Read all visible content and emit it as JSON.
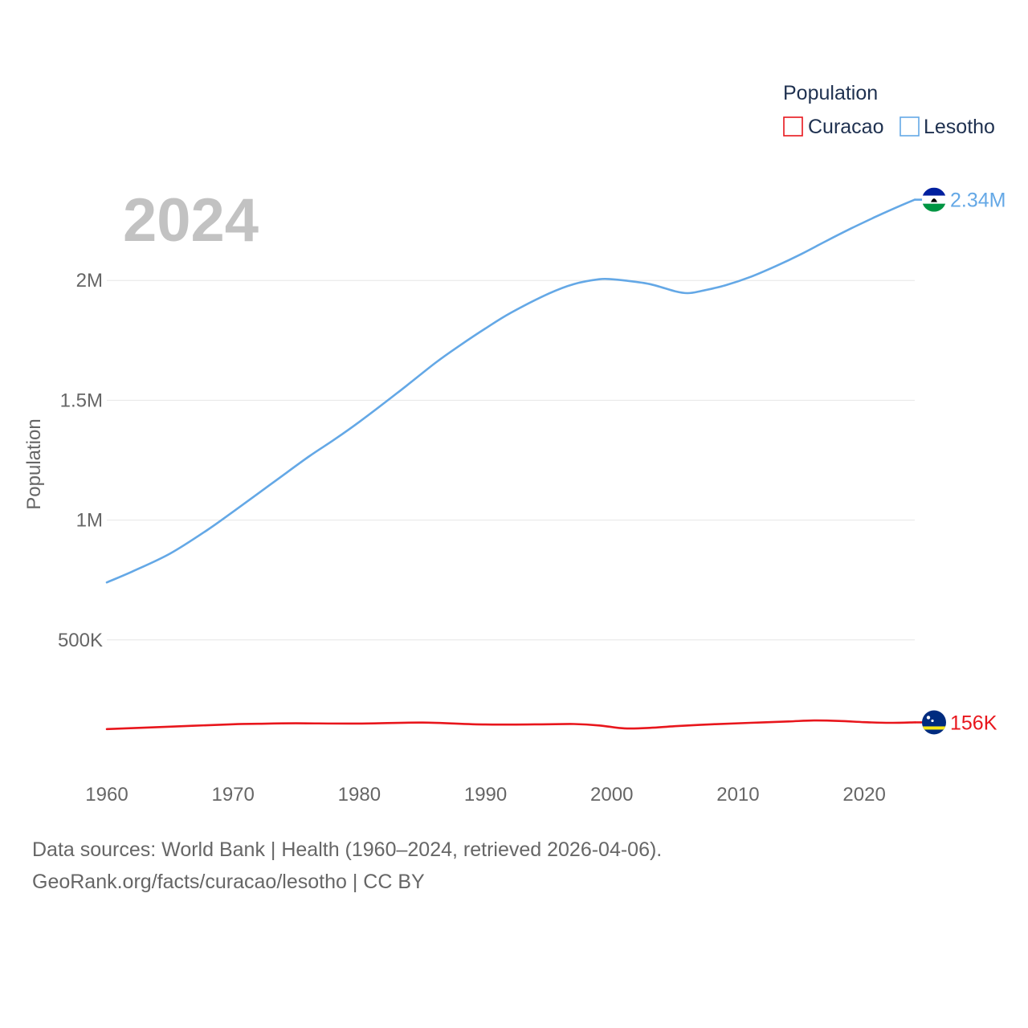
{
  "chart_data": {
    "type": "line",
    "title": "",
    "year_label": "2024",
    "ylabel": "Population",
    "xlabel": "",
    "ylim": [
      0,
      2500000
    ],
    "xlim": [
      1960,
      2024
    ],
    "y_ticks": [
      {
        "value": 500000,
        "label": "500K"
      },
      {
        "value": 1000000,
        "label": "1M"
      },
      {
        "value": 1500000,
        "label": "1.5M"
      },
      {
        "value": 2000000,
        "label": "2M"
      }
    ],
    "x_ticks": [
      {
        "value": 1960,
        "label": "1960"
      },
      {
        "value": 1970,
        "label": "1970"
      },
      {
        "value": 1980,
        "label": "1980"
      },
      {
        "value": 1990,
        "label": "1990"
      },
      {
        "value": 2000,
        "label": "2000"
      },
      {
        "value": 2010,
        "label": "2010"
      },
      {
        "value": 2020,
        "label": "2020"
      }
    ],
    "legend": {
      "title": "Population",
      "position": "top-right",
      "entries": [
        "Curacao",
        "Lesotho"
      ]
    },
    "series": [
      {
        "name": "Lesotho",
        "color": "#64a8e6",
        "end_label": "2.34M",
        "flag": "lesotho-flag",
        "x": [
          1960,
          1962,
          1965,
          1968,
          1970,
          1973,
          1976,
          1978,
          1980,
          1983,
          1986,
          1988,
          1990,
          1992,
          1995,
          1997,
          1999,
          2000,
          2001,
          2003,
          2005,
          2006,
          2007,
          2009,
          2011,
          2013,
          2015,
          2017,
          2019,
          2021,
          2023,
          2024
        ],
        "values": [
          740000,
          785000,
          860000,
          960000,
          1035000,
          1150000,
          1265000,
          1335000,
          1410000,
          1530000,
          1655000,
          1730000,
          1800000,
          1865000,
          1945000,
          1985000,
          2005000,
          2005000,
          2000000,
          1985000,
          1955000,
          1947000,
          1955000,
          1980000,
          2015000,
          2060000,
          2110000,
          2165000,
          2218000,
          2268000,
          2315000,
          2337000
        ]
      },
      {
        "name": "Curacao",
        "color": "#e8161c",
        "end_label": "156K",
        "flag": "curacao-flag",
        "x": [
          1960,
          1965,
          1970,
          1972,
          1975,
          1980,
          1985,
          1990,
          1995,
          1997,
          1999,
          2001,
          2003,
          2005,
          2008,
          2011,
          2014,
          2016,
          2018,
          2020,
          2022,
          2024
        ],
        "values": [
          128000,
          138000,
          148000,
          150000,
          152000,
          151000,
          155000,
          147000,
          148000,
          149000,
          143000,
          131000,
          133000,
          140000,
          148000,
          154000,
          160000,
          164000,
          162000,
          157000,
          154000,
          156000
        ]
      }
    ]
  },
  "footer": {
    "line1": "Data sources: World Bank | Health (1960–2024, retrieved 2026-04-06).",
    "line2": "GeoRank.org/facts/curacao/lesotho | CC BY"
  }
}
